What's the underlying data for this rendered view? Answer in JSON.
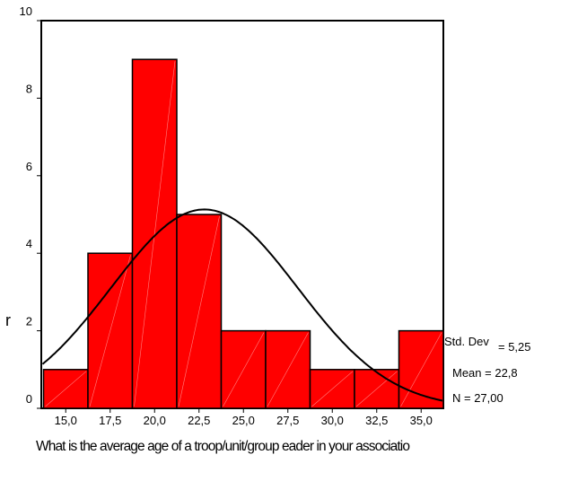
{
  "chart_data": {
    "type": "bar",
    "categories": [
      "15,0",
      "17,5",
      "20,0",
      "22,5",
      "25,0",
      "27,5",
      "30,0",
      "32,5",
      "35,0"
    ],
    "bins": [
      15.0,
      17.5,
      20.0,
      22.5,
      25.0,
      27.5,
      30.0,
      32.5,
      35.0
    ],
    "values": [
      1,
      4,
      9,
      5,
      2,
      2,
      1,
      1,
      2
    ],
    "ylim": [
      0,
      10
    ],
    "yticks": [
      "0",
      "2",
      "4",
      "6",
      "8",
      "10"
    ],
    "ylabel": "r",
    "xlabel": "What is the average age of a troop/unit/group  eader in your associatio",
    "bar_color": "#ff0000",
    "curve": {
      "type": "normal",
      "mean": 22.8,
      "std": 5.25,
      "n": 27,
      "bin_width": 2.5
    },
    "stats": {
      "std_label": "Std. Dev",
      "std_value": "= 5,25",
      "mean": "Mean = 22,8",
      "n": "N = 27,00"
    }
  }
}
